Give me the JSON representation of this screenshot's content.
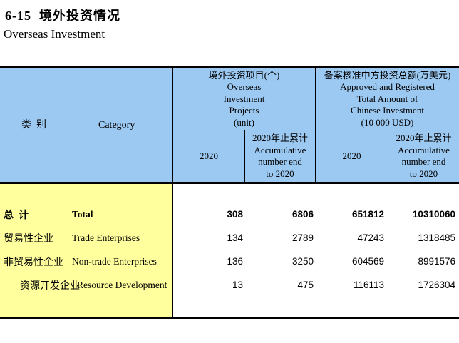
{
  "title": {
    "zh": "6-15  境外投资情况",
    "en": "Overseas Investment"
  },
  "colors": {
    "header_bg": "#9CC9F2",
    "category_bg": "#FFFF9E",
    "border": "#000000",
    "page_bg": "#FFFFFF"
  },
  "table": {
    "category_header": {
      "zh": "类  别",
      "en": "Category"
    },
    "groups": [
      {
        "label": "境外投资项目(个)\nOverseas\nInvestment\nProjects\n(unit)"
      },
      {
        "label": "备案核准中方投资总额(万美元)\nApproved and Registered\nTotal Amount of\nChinese Investment\n(10 000 USD)"
      }
    ],
    "subheaders": [
      "2020",
      "2020年止累计\nAccumulative\nnumber end\nto 2020",
      "2020",
      "2020年止累计\nAccumulative\nnumber end\nto 2020"
    ],
    "rows": [
      {
        "zh": "总  计",
        "en": "Total",
        "projects_2020": "308",
        "projects_cum": "6806",
        "amount_2020": "651812",
        "amount_cum": "10310060"
      },
      {
        "zh": "贸易性企业",
        "en": "Trade Enterprises",
        "projects_2020": "134",
        "projects_cum": "2789",
        "amount_2020": "47243",
        "amount_cum": "1318485"
      },
      {
        "zh": "非贸易性企业",
        "en": "Non-trade Enterprises",
        "projects_2020": "136",
        "projects_cum": "3250",
        "amount_2020": "604569",
        "amount_cum": "8991576"
      },
      {
        "zh": "资源开发企业",
        "en": "Resource Development",
        "projects_2020": "13",
        "projects_cum": "475",
        "amount_2020": "116113",
        "amount_cum": "1726304"
      }
    ]
  }
}
